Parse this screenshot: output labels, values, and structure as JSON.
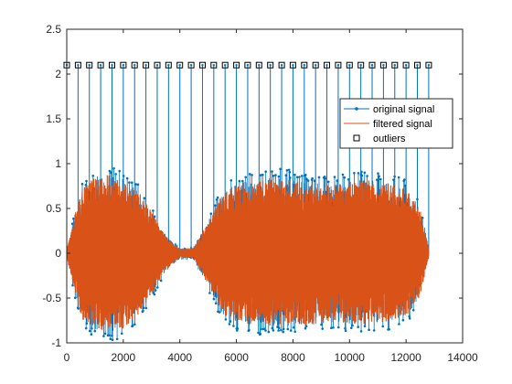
{
  "chart_data": {
    "type": "line",
    "title": "",
    "xlabel": "",
    "ylabel": "",
    "xlim": [
      0,
      14000
    ],
    "ylim": [
      -1,
      2.5
    ],
    "xticks": [
      0,
      2000,
      4000,
      6000,
      8000,
      10000,
      12000,
      14000
    ],
    "yticks": [
      -1,
      -0.5,
      0,
      0.5,
      1,
      1.5,
      2,
      2.5
    ],
    "xtick_labels": [
      "0",
      "2000",
      "4000",
      "6000",
      "8000",
      "10000",
      "12000",
      "14000"
    ],
    "ytick_labels": [
      "-1",
      "-0.5",
      "0",
      "0.5",
      "1",
      "1.5",
      "2",
      "2.5"
    ],
    "grid": false,
    "legend_position": "top-right",
    "colors": {
      "original_signal": "#0072BD",
      "filtered_signal": "#D95319",
      "outliers": "#000000"
    },
    "series": [
      {
        "name": "original signal",
        "style": "line-with-dot-markers",
        "x": [
          0,
          500,
          1000,
          1500,
          2000,
          2500,
          3000,
          3500,
          4000,
          4500,
          5000,
          5500,
          6000,
          6500,
          7000,
          7500,
          8000,
          8500,
          9000,
          9500,
          10000,
          10500,
          11000,
          11500,
          12000,
          12500,
          12800
        ],
        "upper_envelope": [
          0.05,
          0.78,
          0.95,
          0.98,
          0.93,
          0.8,
          0.52,
          0.22,
          0.07,
          0.08,
          0.4,
          0.74,
          0.88,
          0.9,
          0.93,
          0.95,
          0.93,
          0.88,
          0.86,
          0.87,
          0.9,
          0.92,
          0.9,
          0.88,
          0.82,
          0.55,
          0.05
        ],
        "lower_envelope": [
          -0.05,
          -0.8,
          -0.95,
          -0.98,
          -0.95,
          -0.78,
          -0.52,
          -0.22,
          -0.07,
          -0.08,
          -0.42,
          -0.76,
          -0.88,
          -0.9,
          -0.92,
          -0.9,
          -0.9,
          -0.9,
          -0.88,
          -0.87,
          -0.88,
          -0.9,
          -0.88,
          -0.85,
          -0.8,
          -0.55,
          -0.05
        ]
      },
      {
        "name": "filtered signal",
        "style": "line",
        "x": [
          0,
          500,
          1000,
          1500,
          2000,
          2500,
          3000,
          3500,
          4000,
          4500,
          5000,
          5500,
          6000,
          6500,
          7000,
          7500,
          8000,
          8500,
          9000,
          9500,
          10000,
          10500,
          11000,
          11500,
          12000,
          12500,
          12800
        ],
        "upper_envelope": [
          0.04,
          0.72,
          0.85,
          0.88,
          0.82,
          0.7,
          0.46,
          0.19,
          0.05,
          0.06,
          0.35,
          0.66,
          0.78,
          0.8,
          0.82,
          0.84,
          0.82,
          0.78,
          0.76,
          0.77,
          0.8,
          0.82,
          0.8,
          0.78,
          0.72,
          0.48,
          0.04
        ],
        "lower_envelope": [
          -0.04,
          -0.72,
          -0.86,
          -0.88,
          -0.84,
          -0.7,
          -0.46,
          -0.19,
          -0.05,
          -0.06,
          -0.36,
          -0.68,
          -0.78,
          -0.8,
          -0.82,
          -0.8,
          -0.8,
          -0.8,
          -0.78,
          -0.77,
          -0.78,
          -0.8,
          -0.78,
          -0.75,
          -0.7,
          -0.48,
          -0.04
        ]
      },
      {
        "name": "outliers",
        "style": "square-markers",
        "x": [
          0,
          400,
          800,
          1200,
          1600,
          2000,
          2400,
          2800,
          3200,
          3600,
          4000,
          4400,
          4800,
          5200,
          5600,
          6000,
          6400,
          6800,
          7200,
          7600,
          8000,
          8400,
          8800,
          9200,
          9600,
          10000,
          10400,
          10800,
          11200,
          11600,
          12000,
          12400,
          12800
        ],
        "y": [
          2.1,
          2.1,
          2.1,
          2.1,
          2.1,
          2.1,
          2.1,
          2.1,
          2.1,
          2.1,
          2.1,
          2.1,
          2.1,
          2.1,
          2.1,
          2.1,
          2.1,
          2.1,
          2.1,
          2.1,
          2.1,
          2.1,
          2.1,
          2.1,
          2.1,
          2.1,
          2.1,
          2.1,
          2.1,
          2.1,
          2.1,
          2.1,
          2.1
        ]
      }
    ],
    "legend": [
      {
        "label": "original signal",
        "symbol": "line-dot"
      },
      {
        "label": "filtered signal",
        "symbol": "line"
      },
      {
        "label": "outliers",
        "symbol": "square"
      }
    ]
  }
}
